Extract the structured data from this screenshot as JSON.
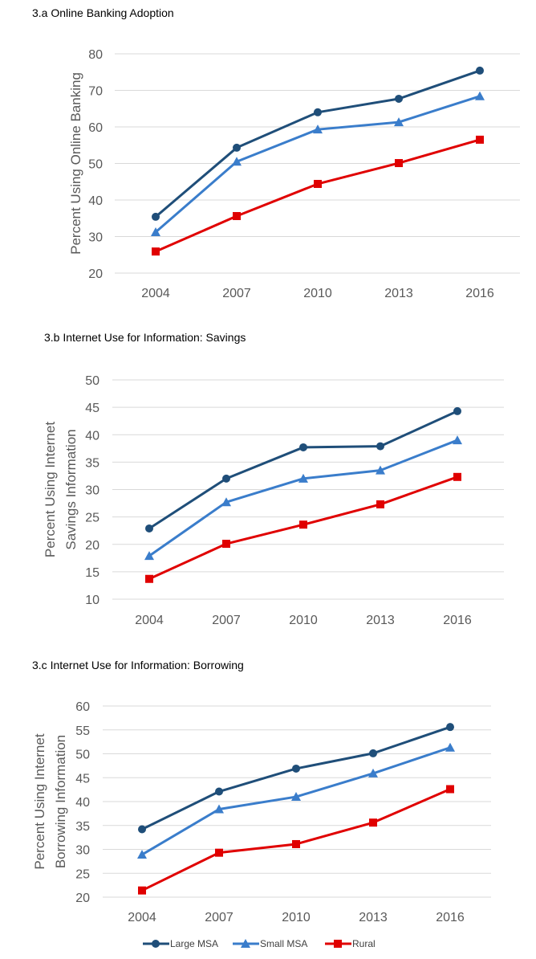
{
  "colors": {
    "Large MSA": "#1F4E79",
    "Small MSA": "#3A7DCB",
    "Rural": "#E00000"
  },
  "markers": {
    "Large MSA": "circle",
    "Small MSA": "triangle",
    "Rural": "square"
  },
  "legend": {
    "placement": "bottom",
    "entries": [
      "Large MSA",
      "Small MSA",
      "Rural"
    ]
  },
  "chart_data": [
    {
      "type": "line",
      "title": "3.a Online Banking Adoption",
      "ylabel": [
        "Percent Using Online Banking"
      ],
      "xlabel": "",
      "categories": [
        "2004",
        "2007",
        "2010",
        "2013",
        "2016"
      ],
      "ylim": [
        20,
        80
      ],
      "yticks": [
        20,
        30,
        40,
        50,
        60,
        70,
        80
      ],
      "grid": true,
      "series": [
        {
          "name": "Large MSA",
          "values": [
            35.4,
            54.3,
            64.0,
            67.7,
            75.4
          ]
        },
        {
          "name": "Small MSA",
          "values": [
            31.2,
            50.5,
            59.3,
            61.3,
            68.4
          ]
        },
        {
          "name": "Rural",
          "values": [
            25.9,
            35.6,
            44.4,
            50.1,
            56.5
          ]
        }
      ]
    },
    {
      "type": "line",
      "title": "3.b Internet Use for Information: Savings",
      "ylabel": [
        "Percent Using Internet",
        "Savings Information"
      ],
      "xlabel": "",
      "categories": [
        "2004",
        "2007",
        "2010",
        "2013",
        "2016"
      ],
      "ylim": [
        10,
        50
      ],
      "yticks": [
        10,
        15,
        20,
        25,
        30,
        35,
        40,
        45,
        50
      ],
      "grid": true,
      "series": [
        {
          "name": "Large MSA",
          "values": [
            22.9,
            32.0,
            37.7,
            37.9,
            44.3
          ]
        },
        {
          "name": "Small MSA",
          "values": [
            17.9,
            27.7,
            32.0,
            33.5,
            39.0
          ]
        },
        {
          "name": "Rural",
          "values": [
            13.7,
            20.1,
            23.6,
            27.3,
            32.3
          ]
        }
      ]
    },
    {
      "type": "line",
      "title": "3.c Internet Use for Information: Borrowing",
      "ylabel": [
        "Percent Using Internet",
        "Borrowing Information"
      ],
      "xlabel": "",
      "categories": [
        "2004",
        "2007",
        "2010",
        "2013",
        "2016"
      ],
      "ylim": [
        20,
        60
      ],
      "yticks": [
        20,
        25,
        30,
        35,
        40,
        45,
        50,
        55,
        60
      ],
      "grid": true,
      "series": [
        {
          "name": "Large MSA",
          "values": [
            34.2,
            42.1,
            46.9,
            50.1,
            55.6
          ]
        },
        {
          "name": "Small MSA",
          "values": [
            28.9,
            38.4,
            41.0,
            45.9,
            51.3
          ]
        },
        {
          "name": "Rural",
          "values": [
            21.4,
            29.3,
            31.1,
            35.6,
            42.6
          ]
        }
      ]
    }
  ]
}
